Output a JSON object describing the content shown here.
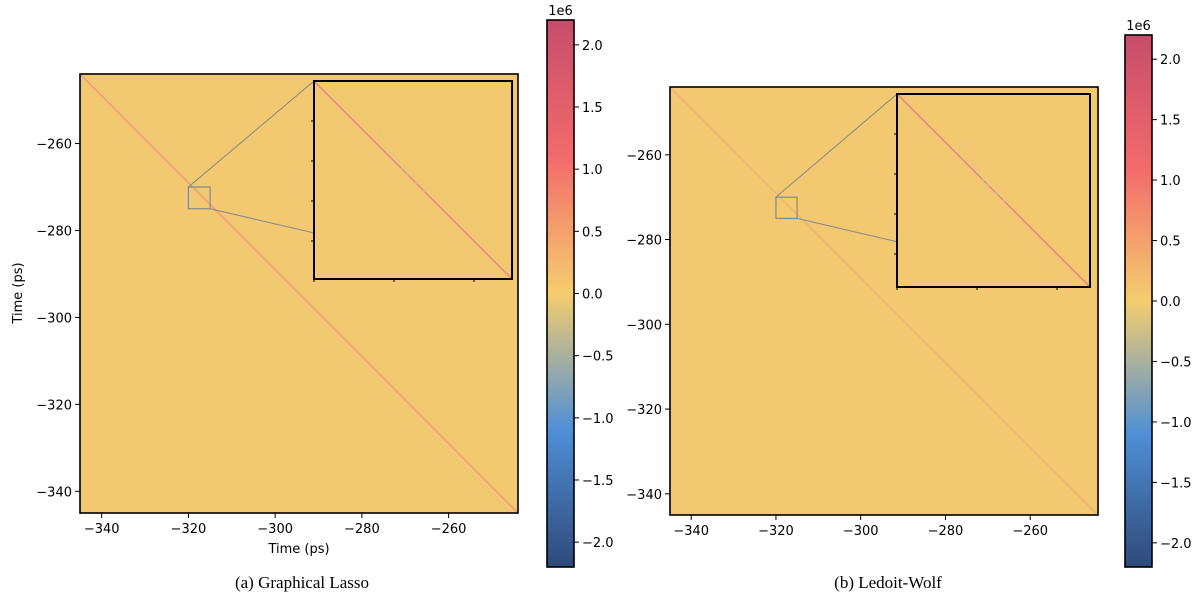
{
  "colors": {
    "cmap_stops": [
      "#2f4a7a",
      "#4f8fd6",
      "#f5cd6e",
      "#f26b6b",
      "#c64d6b"
    ],
    "background_value_color": "#f2c870",
    "diagonal_color": "#ef9e7e",
    "inset_box_color": "#888888"
  },
  "chart_data": [
    {
      "type": "heatmap",
      "caption": "(a) Graphical Lasso",
      "xlabel": "Time (ps)",
      "ylabel": "Time (ps)",
      "xlim": [
        -345,
        -244
      ],
      "ylim": [
        -345,
        -244
      ],
      "xticks": [
        -340,
        -320,
        -300,
        -280,
        -260
      ],
      "xtick_labels": [
        "−340",
        "−320",
        "−300",
        "−280",
        "−260"
      ],
      "yticks": [
        -260,
        -280,
        -300,
        -320,
        -340
      ],
      "ytick_labels": [
        "−260",
        "−280",
        "−300",
        "−320",
        "−340"
      ],
      "zoom_region": {
        "x": [
          -320,
          -315
        ],
        "y": [
          -275,
          -270
        ]
      },
      "colorbar": {
        "min": -2.2,
        "max": 2.2,
        "multiplier": "1e6",
        "ticks": [
          2.0,
          1.5,
          1.0,
          0.5,
          0.0,
          -0.5,
          -1.0,
          -1.5,
          -2.0
        ],
        "tick_labels": [
          "2.0",
          "1.5",
          "1.0",
          "0.5",
          "0.0",
          "−0.5",
          "−1.0",
          "−1.5",
          "−2.0"
        ]
      }
    },
    {
      "type": "heatmap",
      "caption": "(b) Ledoit-Wolf",
      "xlabel": "",
      "ylabel": "",
      "xlim": [
        -345,
        -244
      ],
      "ylim": [
        -345,
        -244
      ],
      "xticks": [
        -340,
        -320,
        -300,
        -280,
        -260
      ],
      "xtick_labels": [
        "−340",
        "−320",
        "−300",
        "−280",
        "−260"
      ],
      "yticks": [
        -260,
        -280,
        -300,
        -320,
        -340
      ],
      "ytick_labels": [
        "−260",
        "−280",
        "−300",
        "−320",
        "−340"
      ],
      "zoom_region": {
        "x": [
          -320,
          -315
        ],
        "y": [
          -275,
          -270
        ]
      },
      "colorbar": {
        "min": -2.2,
        "max": 2.2,
        "multiplier": "1e6",
        "ticks": [
          2.0,
          1.5,
          1.0,
          0.5,
          0.0,
          -0.5,
          -1.0,
          -1.5,
          -2.0
        ],
        "tick_labels": [
          "2.0",
          "1.5",
          "1.0",
          "0.5",
          "0.0",
          "−0.5",
          "−1.0",
          "−1.5",
          "−2.0"
        ]
      }
    }
  ]
}
